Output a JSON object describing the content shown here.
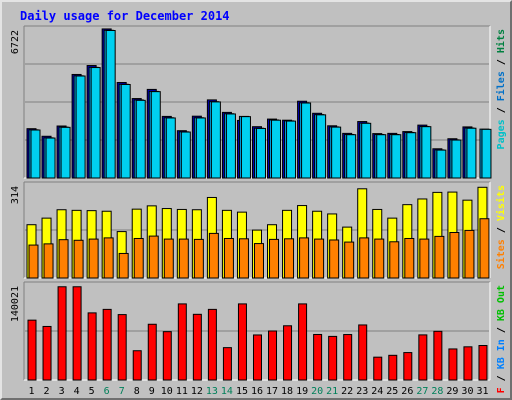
{
  "chart_data": {
    "title": "Daily usage for December 2014",
    "type": "bar",
    "categories": [
      "1",
      "2",
      "3",
      "4",
      "5",
      "6",
      "7",
      "8",
      "9",
      "10",
      "11",
      "12",
      "13",
      "14",
      "15",
      "16",
      "17",
      "18",
      "19",
      "20",
      "21",
      "22",
      "23",
      "24",
      "25",
      "26",
      "27",
      "28",
      "29",
      "30",
      "31"
    ],
    "weekend_days": [
      "6",
      "7",
      "13",
      "14",
      "20",
      "21",
      "27",
      "28"
    ],
    "panels": [
      {
        "id": "hits-files-pages",
        "scale_label": "6722",
        "ymax": 6722,
        "right_labels": [
          {
            "text": "Pages",
            "color": "#00c0c8"
          },
          {
            "text": " / ",
            "color": "#000000"
          },
          {
            "text": "Files",
            "color": "#0070c8"
          },
          {
            "text": " / ",
            "color": "#000000"
          },
          {
            "text": "Hits",
            "color": "#008040"
          }
        ],
        "series": [
          {
            "name": "Hits",
            "color": "#0000b0",
            "values": [
              2210,
              1870,
              2330,
              4640,
              5040,
              6680,
              4280,
              3560,
              3970,
              2760,
              2120,
              2770,
              3500,
              2940,
              2580,
              2300,
              2640,
              2590,
              3440,
              2900,
              2340,
              2000,
              2530,
              1990,
              2000,
              2080,
              2370,
              1310,
              1760,
              2290,
              0
            ]
          },
          {
            "name": "Files",
            "color": "#00a0e0",
            "values": [
              2160,
              1800,
              2280,
              4580,
              4960,
              6620,
              4200,
              3500,
              3880,
              2700,
              2070,
              2700,
              3420,
              2880,
              2760,
              2230,
              2600,
              2560,
              3370,
              2840,
              2290,
              1950,
              2460,
              1950,
              1950,
              2040,
              2310,
              1260,
              1710,
              2240,
              2190
            ]
          },
          {
            "name": "Pages",
            "color": "#00d0f0",
            "values": [
              2150,
              1790,
              2270,
              4570,
              4950,
              6610,
              4190,
              3480,
              3870,
              2690,
              2060,
              2690,
              3410,
              2870,
              2750,
              2220,
              2590,
              2550,
              3360,
              2830,
              2280,
              1940,
              2450,
              1940,
              1940,
              2030,
              2300,
              1250,
              1700,
              2230,
              2180
            ]
          }
        ]
      },
      {
        "id": "visits-sites",
        "scale_label": "314",
        "ymax": 314,
        "right_labels": [
          {
            "text": "Sites",
            "color": "#ff8000"
          },
          {
            "text": " / ",
            "color": "#000000"
          },
          {
            "text": "Visits",
            "color": "#ffff00"
          }
        ],
        "series": [
          {
            "name": "Visits",
            "color": "#ffff00",
            "values": [
              178,
              200,
              228,
              226,
              225,
              223,
              155,
              230,
              241,
              232,
              229,
              228,
              269,
              226,
              220,
              160,
              178,
              226,
              242,
              223,
              214,
              170,
              298,
              229,
              200,
              245,
              264,
              286,
              287,
              260,
              303
            ]
          },
          {
            "name": "Sites",
            "color": "#ff8000",
            "values": [
              110,
              114,
              128,
              126,
              130,
              134,
              82,
              132,
              140,
              130,
              130,
              129,
              149,
              132,
              131,
              115,
              129,
              131,
              134,
              130,
              127,
              120,
              134,
              130,
              121,
              132,
              130,
              139,
              152,
              159,
              198
            ]
          }
        ]
      },
      {
        "id": "kbytes",
        "scale_label": "140021",
        "ymax": 140021,
        "right_labels": [
          {
            "text": "KB F",
            "color": "#ff0000"
          },
          {
            "text": " / ",
            "color": "#000000"
          },
          {
            "text": "KB In",
            "color": "#0080ff"
          },
          {
            "text": " / ",
            "color": "#000000"
          },
          {
            "text": "KB Out",
            "color": "#00c000"
          }
        ],
        "series": [
          {
            "name": "KBytes",
            "color": "#ff0000",
            "values": [
              87300,
              78100,
              136000,
              136000,
              97900,
              103000,
              95400,
              42700,
              81300,
              70500,
              111000,
              95800,
              103000,
              47200,
              111000,
              65700,
              71500,
              79100,
              111000,
              66400,
              63600,
              66300,
              80300,
              33300,
              36000,
              40000,
              65800,
              71000,
              45300,
              48400,
              50300
            ]
          }
        ]
      }
    ]
  }
}
